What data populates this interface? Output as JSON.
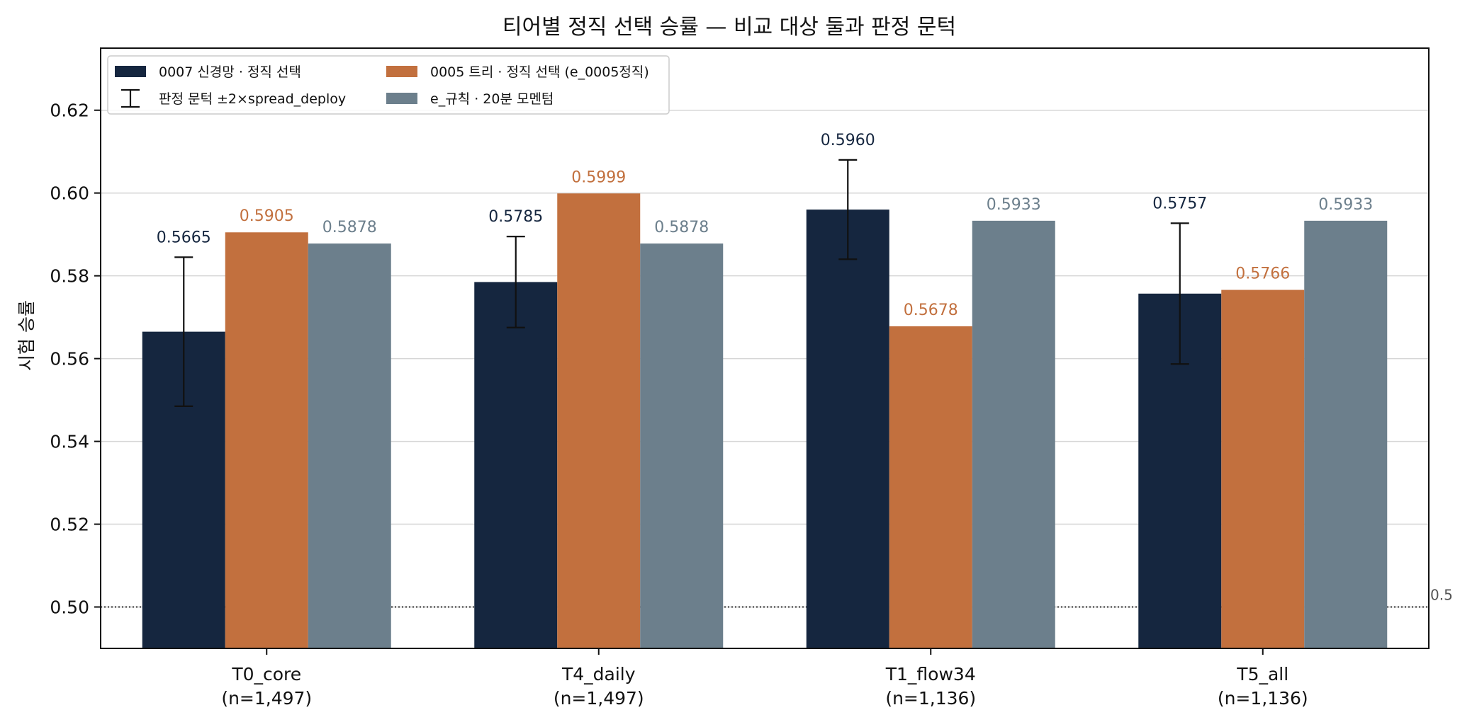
{
  "chart_data": {
    "type": "bar",
    "title": "티어별 정직 선택 승률 — 비교 대상 둘과 판정 문턱",
    "xlabel": "",
    "ylabel": "시험 승률",
    "ylim": [
      0.49,
      0.635
    ],
    "yticks": [
      "0.50",
      "0.52",
      "0.54",
      "0.56",
      "0.58",
      "0.60",
      "0.62"
    ],
    "grid": "horizontal",
    "legend_position": "top-left",
    "categories": [
      {
        "name": "T0_core",
        "n": "(n=1,497)"
      },
      {
        "name": "T4_daily",
        "n": "(n=1,497)"
      },
      {
        "name": "T1_flow34",
        "n": "(n=1,136)"
      },
      {
        "name": "T5_all",
        "n": "(n=1,136)"
      }
    ],
    "series": [
      {
        "name": "0007 신경망 · 정직 선택",
        "color": "#15263f",
        "label_color": "#15263f",
        "values": [
          0.5665,
          0.5785,
          0.596,
          0.5757
        ],
        "labels": [
          "0.5665",
          "0.5785",
          "0.5960",
          "0.5757"
        ],
        "error_low": [
          0.5485,
          0.5675,
          0.584,
          0.5587
        ],
        "error_high": [
          0.5845,
          0.5895,
          0.608,
          0.5927
        ]
      },
      {
        "name": "0005 트리 · 정직 선택 (e_0005정직)",
        "color": "#c2703e",
        "label_color": "#c2703e",
        "values": [
          0.5905,
          0.5999,
          0.5678,
          0.5766
        ],
        "labels": [
          "0.5905",
          "0.5999",
          "0.5678",
          "0.5766"
        ]
      },
      {
        "name": "e_규칙 · 20분 모멘텀",
        "color": "#6c7f8c",
        "label_color": "#6c7f8c",
        "values": [
          0.5878,
          0.5878,
          0.5933,
          0.5933
        ],
        "labels": [
          "0.5878",
          "0.5878",
          "0.5933",
          "0.5933"
        ]
      }
    ],
    "errorbar_legend": "판정 문턱 ±2×spread_deploy",
    "reference_line": {
      "value": 0.5,
      "label": "0.5"
    }
  }
}
